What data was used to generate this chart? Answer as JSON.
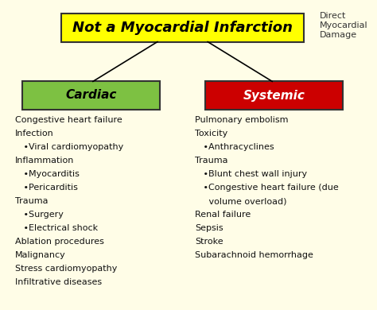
{
  "bg_color": "#FFFDE7",
  "title": "Not a Myocardial Infarction",
  "title_box_color": "#FFFF00",
  "title_box_edge": "#333333",
  "title_font_size": 13,
  "title_font_weight": "bold",
  "side_note": "Direct\nMyocardial\nDamage",
  "side_note_fontsize": 8,
  "cardiac_label": "Cardiac",
  "cardiac_box_color": "#7DC142",
  "systemic_label": "Systemic",
  "systemic_box_color": "#CC0000",
  "header_text_color": "#000000",
  "header_fontsize": 11,
  "header_fontweight": "bold",
  "cardiac_items": [
    "Congestive heart failure",
    "Infection",
    "   •Viral cardiomyopathy",
    "Inflammation",
    "   •Myocarditis",
    "   •Pericarditis",
    "Trauma",
    "   •Surgery",
    "   •Electrical shock",
    "Ablation procedures",
    "Malignancy",
    "Stress cardiomyopathy",
    "Infiltrative diseases"
  ],
  "systemic_items": [
    "Pulmonary embolism",
    "Toxicity",
    "   •Anthracyclines",
    "Trauma",
    "   •Blunt chest wall injury",
    "   •Congestive heart failure (due",
    "     volume overload)",
    "Renal failure",
    "Sepsis",
    "Stroke",
    "Subarachnoid hemorrhage"
  ],
  "list_fontsize": 8,
  "list_color": "#111111"
}
